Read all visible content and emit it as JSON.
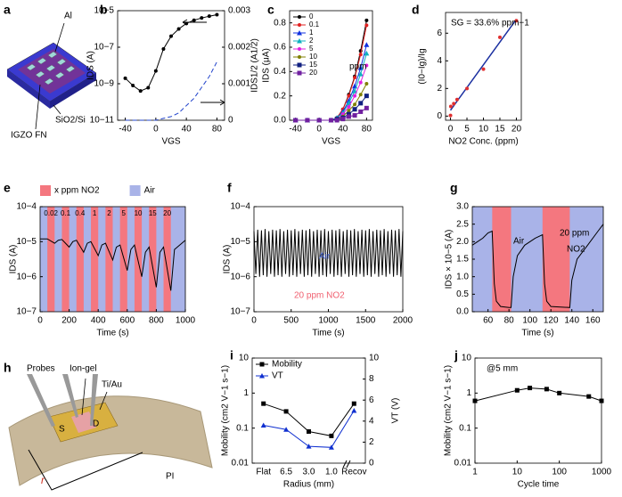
{
  "panel_a": {
    "letter": "a",
    "labels": [
      "Al",
      "IGZO FN",
      "SiO2/Si"
    ]
  },
  "panel_h": {
    "letter": "h",
    "labels": [
      "Probes",
      "Ion-gel",
      "Ti/Au",
      "S",
      "D",
      "r",
      "PI"
    ]
  },
  "chart_data": [
    {
      "panel": "b",
      "type": "line",
      "xlabel": "VGS",
      "ylabel": "IDS (A)",
      "y2label": "IDS1/2 (A1/2)",
      "xlim": [
        -50,
        90
      ],
      "xticks": [
        -40,
        0,
        40,
        80
      ],
      "ylim": [
        1e-11,
        1e-05
      ],
      "ylog": true,
      "yticks": [
        {
          "value": 1e-11,
          "label": "10−11"
        },
        {
          "value": 1e-09,
          "label": "10−9"
        },
        {
          "value": 1e-07,
          "label": "10−7"
        },
        {
          "value": 1e-05,
          "label": "10−5"
        }
      ],
      "y2lim": [
        0,
        0.003
      ],
      "y2ticks": [
        0,
        0.001,
        0.002,
        0.003
      ],
      "x": [
        -40,
        -30,
        -20,
        -10,
        0,
        10,
        20,
        30,
        40,
        50,
        60,
        70,
        80
      ],
      "series": [
        {
          "color": "#000000",
          "marker": "circle",
          "values": [
            2e-09,
            8e-10,
            4e-10,
            6e-10,
            5e-09,
            8e-08,
            4e-07,
            1e-06,
            2e-06,
            3e-06,
            4e-06,
            5e-06,
            6e-06
          ]
        },
        {
          "color": "#2244cc",
          "dash": true,
          "axis": "y2",
          "values": [
            0,
            0,
            0,
            0,
            0,
            5e-05,
            0.0001,
            0.0002,
            0.0004,
            0.0006,
            0.0009,
            0.0012,
            0.0016
          ]
        }
      ]
    },
    {
      "panel": "c",
      "type": "line",
      "xlabel": "VGS",
      "ylabel": "IDS (μA)",
      "legend": "upper left",
      "xlim": [
        -50,
        90
      ],
      "xticks": [
        -40,
        0,
        40,
        80
      ],
      "ylim": [
        0,
        0.9
      ],
      "yticks": [
        {
          "value": 0,
          "label": "0.0"
        },
        0.2,
        0.4,
        0.6,
        0.8
      ],
      "x": [
        -40,
        -20,
        0,
        20,
        30,
        40,
        50,
        60,
        70,
        80
      ],
      "annotations": [
        {
          "text": "ppm",
          "color": "#000000"
        }
      ],
      "series": [
        {
          "name": "0",
          "color": "#000000",
          "marker": "circle",
          "values": [
            0,
            0,
            0,
            0,
            0.02,
            0.09,
            0.21,
            0.36,
            0.57,
            0.82
          ]
        },
        {
          "name": "0.1",
          "color": "#e02020",
          "marker": "circle",
          "values": [
            0,
            0,
            0,
            0,
            0.02,
            0.09,
            0.2,
            0.35,
            0.54,
            0.78
          ]
        },
        {
          "name": "1",
          "color": "#1030e0",
          "marker": "triangle",
          "values": [
            0,
            0,
            0,
            0,
            0.02,
            0.07,
            0.16,
            0.28,
            0.43,
            0.62
          ]
        },
        {
          "name": "2",
          "color": "#10b0c0",
          "marker": "triangle",
          "values": [
            0,
            0,
            0,
            0,
            0.02,
            0.06,
            0.14,
            0.24,
            0.38,
            0.55
          ]
        },
        {
          "name": "5",
          "color": "#e020e0",
          "marker": "circle",
          "values": [
            0,
            0,
            0,
            0,
            0.01,
            0.05,
            0.11,
            0.2,
            0.31,
            0.45
          ]
        },
        {
          "name": "10",
          "color": "#808000",
          "marker": "circle",
          "values": [
            0,
            0,
            0,
            0,
            0.01,
            0.03,
            0.08,
            0.13,
            0.21,
            0.3
          ]
        },
        {
          "name": "15",
          "color": "#102080",
          "marker": "square",
          "values": [
            0,
            0,
            0,
            0,
            0.01,
            0.02,
            0.05,
            0.09,
            0.14,
            0.2
          ]
        },
        {
          "name": "20",
          "color": "#7020a0",
          "marker": "square",
          "values": [
            0,
            0,
            0,
            0,
            0,
            0.01,
            0.03,
            0.04,
            0.07,
            0.1
          ]
        }
      ]
    },
    {
      "panel": "d",
      "type": "scatter",
      "xlabel": "NO2 Conc. (ppm)",
      "ylabel": "(I0−Ig)/Ig",
      "fit": true,
      "fit_color": "#1a2fa0",
      "xlim": [
        -1.5,
        21.5
      ],
      "xticks": [
        0,
        5,
        10,
        15,
        20
      ],
      "ylim": [
        -0.3,
        7.5
      ],
      "yticks": [
        0,
        2,
        4,
        6
      ],
      "x": [
        0,
        0.1,
        1,
        2,
        5,
        10,
        15,
        20
      ],
      "annotations": [
        {
          "text": "SG = 33.6% ppm−1",
          "color": "#000000"
        }
      ],
      "series": [
        {
          "color": "#e03030",
          "marker": "circle",
          "values": [
            0.05,
            0.7,
            0.9,
            1.2,
            2.0,
            3.4,
            5.7,
            6.9
          ]
        }
      ]
    },
    {
      "panel": "e",
      "type": "line",
      "xlabel": "Time (s)",
      "ylabel": "IDS (A)",
      "band_legend": [
        "x ppm NO2",
        "Air"
      ],
      "band_color": "#f4777f",
      "background_color": "#a9b3e8",
      "bands": [
        {
          "start": 50,
          "end": 100,
          "label": "0.02"
        },
        {
          "start": 150,
          "end": 200,
          "label": "0.1"
        },
        {
          "start": 250,
          "end": 300,
          "label": "0.4"
        },
        {
          "start": 350,
          "end": 400,
          "label": "1"
        },
        {
          "start": 450,
          "end": 500,
          "label": "2"
        },
        {
          "start": 550,
          "end": 600,
          "label": "5"
        },
        {
          "start": 650,
          "end": 700,
          "label": "10"
        },
        {
          "start": 750,
          "end": 800,
          "label": "15"
        },
        {
          "start": 850,
          "end": 900,
          "label": "20"
        }
      ],
      "xlim": [
        0,
        1000
      ],
      "xticks": [
        0,
        200,
        400,
        600,
        800,
        1000
      ],
      "ylim": [
        1e-07,
        0.0001
      ],
      "ylog": true,
      "yticks": [
        {
          "value": 1e-07,
          "label": "10−7"
        },
        {
          "value": 1e-06,
          "label": "10−6"
        },
        {
          "value": 1e-05,
          "label": "10−5"
        },
        {
          "value": 0.0001,
          "label": "10−4"
        }
      ],
      "x": [
        0,
        50,
        100,
        125,
        150,
        200,
        225,
        250,
        300,
        325,
        350,
        400,
        425,
        450,
        500,
        525,
        550,
        600,
        625,
        650,
        700,
        725,
        750,
        800,
        825,
        850,
        900,
        925,
        1000
      ],
      "series": [
        {
          "color": "#000000",
          "values": [
            1.2e-05,
            1.2e-05,
            9e-06,
            1.1e-05,
            1.15e-05,
            7e-06,
            1e-05,
            1.1e-05,
            5e-06,
            9e-06,
            1e-05,
            4e-06,
            8e-06,
            9e-06,
            3e-06,
            7e-06,
            8e-06,
            1.5e-06,
            6e-06,
            8e-06,
            1e-06,
            5e-06,
            7e-06,
            5e-07,
            5e-06,
            7e-06,
            4e-07,
            6e-06,
            1.1e-05
          ]
        }
      ]
    },
    {
      "panel": "f",
      "type": "line",
      "xlabel": "Time (s)",
      "ylabel": "IDS (A)",
      "xlim": [
        0,
        2000
      ],
      "xticks": [
        0,
        500,
        1000,
        1500,
        2000
      ],
      "ylim": [
        1e-07,
        0.0001
      ],
      "ylog": true,
      "yticks": [
        {
          "value": 1e-07,
          "label": "10−7"
        },
        {
          "value": 1e-06,
          "label": "10−6"
        },
        {
          "value": 1e-05,
          "label": "10−5"
        },
        {
          "value": 0.0001,
          "label": "10−4"
        }
      ],
      "annotations": [
        {
          "text": "Air",
          "color": "#3050c0"
        },
        {
          "text": "20 ppm NO2",
          "color": "#f06070"
        }
      ],
      "x": [
        0,
        25,
        50,
        75,
        100,
        125,
        150,
        175,
        200,
        225,
        250,
        275,
        300,
        325,
        350,
        375,
        400,
        425,
        450,
        475,
        500,
        525,
        550,
        575,
        600,
        625,
        650,
        675,
        700,
        725,
        750,
        775,
        800,
        825,
        850,
        875,
        900,
        925,
        950,
        975,
        1000,
        1025,
        1050,
        1075,
        1100,
        1125,
        1150,
        1175,
        1200,
        1225,
        1250,
        1275,
        1300,
        1325,
        1350,
        1375,
        1400,
        1425,
        1450,
        1475,
        1500,
        1525,
        1550,
        1575,
        1600,
        1625,
        1650,
        1675,
        1700,
        1725,
        1750,
        1775,
        1800,
        1825,
        1850,
        1875,
        1900,
        1925,
        1950,
        1975,
        2000
      ],
      "series": [
        {
          "color": "#000000",
          "values": [
            2e-05,
            1.2e-06,
            2.2e-05,
            1e-06,
            2.1e-05,
            1.1e-06,
            2.3e-05,
            1e-06,
            2e-05,
            1.2e-06,
            2.2e-05,
            1e-06,
            2.1e-05,
            1.1e-06,
            2.3e-05,
            1e-06,
            2e-05,
            1.2e-06,
            2.2e-05,
            1e-06,
            2.1e-05,
            1.1e-06,
            2.3e-05,
            1e-06,
            2e-05,
            1.2e-06,
            2.2e-05,
            1e-06,
            2.1e-05,
            1.1e-06,
            2.3e-05,
            1e-06,
            2e-05,
            1.2e-06,
            2.2e-05,
            1e-06,
            2.1e-05,
            1.1e-06,
            2.3e-05,
            1e-06,
            2e-05,
            1.2e-06,
            2.2e-05,
            1e-06,
            2.1e-05,
            1.1e-06,
            2.3e-05,
            1e-06,
            2e-05,
            1.2e-06,
            2.2e-05,
            1e-06,
            2.1e-05,
            1.1e-06,
            2.3e-05,
            1e-06,
            2e-05,
            1.2e-06,
            2.2e-05,
            1e-06,
            2.1e-05,
            1.1e-06,
            2.3e-05,
            1e-06,
            2e-05,
            1.2e-06,
            2.2e-05,
            1e-06,
            2.1e-05,
            1.1e-06,
            2.3e-05,
            1e-06,
            2e-05,
            1.2e-06,
            2.2e-05,
            1e-06,
            2.1e-05,
            1.1e-06,
            2.3e-05,
            1e-06,
            2e-05
          ]
        }
      ]
    },
    {
      "panel": "g",
      "type": "line",
      "xlabel": "Time (s)",
      "ylabel": "IDS × 10−5 (A)",
      "band_color": "#f4777f",
      "background_color": "#a9b3e8",
      "bands": [
        {
          "start": 64,
          "end": 82
        },
        {
          "start": 112,
          "end": 138
        }
      ],
      "xlim": [
        45,
        170
      ],
      "xticks": [
        60,
        80,
        100,
        120,
        140,
        160
      ],
      "ylim": [
        0,
        3.0
      ],
      "yticks": [
        {
          "value": 0,
          "label": "0.0"
        },
        0.5,
        {
          "value": 1,
          "label": "1.0"
        },
        1.5,
        {
          "value": 2,
          "label": "2.0"
        },
        2.5,
        {
          "value": 3,
          "label": "3.0"
        }
      ],
      "annotations": [
        {
          "text": "Air",
          "color": "#000000"
        },
        {
          "text": "20 ppm",
          "color": "#000000"
        },
        {
          "text": "NO2",
          "color": "#000000"
        }
      ],
      "x": [
        45,
        50,
        55,
        60,
        64,
        66,
        68,
        72,
        80,
        82,
        84,
        88,
        95,
        105,
        112,
        114,
        116,
        120,
        138,
        140,
        145,
        155,
        165,
        170
      ],
      "series": [
        {
          "color": "#000000",
          "values": [
            1.9,
            2.0,
            2.1,
            2.25,
            2.3,
            0.8,
            0.3,
            0.15,
            0.12,
            0.12,
            1.0,
            1.6,
            1.9,
            2.1,
            2.2,
            0.8,
            0.3,
            0.15,
            0.12,
            0.9,
            1.5,
            1.9,
            2.3,
            2.5
          ]
        }
      ]
    },
    {
      "panel": "i",
      "type": "line",
      "xlabel": "Radius (mm)",
      "ylabel": "Mobility (cm2 V−1 s−1)",
      "y2label": "VT (V)",
      "legend": "upper left",
      "categories": [
        "Flat",
        "6.5",
        "3.0",
        "1.0",
        "Recov"
      ],
      "ylim": [
        0.01,
        10
      ],
      "ylog": true,
      "yticks": [
        0.01,
        0.1,
        1,
        10
      ],
      "y2lim": [
        0,
        10
      ],
      "y2ticks": [
        0,
        2,
        4,
        6,
        8,
        10
      ],
      "series": [
        {
          "name": "Mobility",
          "color": "#000000",
          "marker": "square",
          "values": [
            0.5,
            0.3,
            0.08,
            0.06,
            0.5
          ]
        },
        {
          "name": "VT",
          "color": "#1030d0",
          "marker": "triangle",
          "axis": "y2",
          "values": [
            3.6,
            3.2,
            1.6,
            1.5,
            5.0
          ]
        }
      ]
    },
    {
      "panel": "j",
      "type": "line",
      "xlabel": "Cycle time",
      "ylabel": "Mobility (cm2 V−1 s−1)",
      "xlim": [
        1,
        1000
      ],
      "xlog": true,
      "xticks": [
        1,
        10,
        100,
        1000
      ],
      "ylim": [
        0.01,
        10
      ],
      "ylog": true,
      "yticks": [
        0.01,
        0.1,
        1,
        10
      ],
      "annotations": [
        {
          "text": "@5 mm",
          "color": "#000000"
        }
      ],
      "x": [
        1,
        10,
        20,
        50,
        100,
        500,
        1000
      ],
      "series": [
        {
          "color": "#000000",
          "marker": "square",
          "values": [
            0.6,
            1.2,
            1.4,
            1.3,
            1.0,
            0.8,
            0.6
          ]
        }
      ]
    }
  ]
}
